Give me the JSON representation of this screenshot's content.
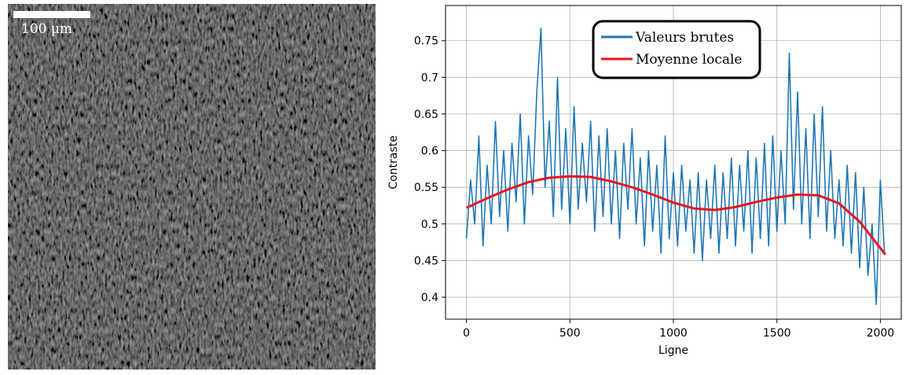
{
  "image": {
    "scale_label": "100 µm"
  },
  "chart_data": {
    "type": "line",
    "xlabel": "Ligne",
    "ylabel": "Contraste",
    "xlim": [
      -101,
      2101
    ],
    "ylim": [
      0.37,
      0.798
    ],
    "xticks": [
      0,
      500,
      1000,
      1500,
      2000
    ],
    "yticks": [
      0.4,
      0.45,
      0.5,
      0.55,
      0.6,
      0.65,
      0.7,
      0.75
    ],
    "grid": true,
    "legend": "upper center",
    "series": [
      {
        "name": "Valeurs brutes",
        "color": "#1f77b4",
        "x": [
          0,
          20,
          40,
          60,
          80,
          100,
          120,
          140,
          160,
          180,
          200,
          220,
          240,
          260,
          280,
          300,
          320,
          340,
          360,
          380,
          400,
          420,
          440,
          460,
          480,
          500,
          520,
          540,
          560,
          580,
          600,
          620,
          640,
          660,
          680,
          700,
          720,
          740,
          760,
          780,
          800,
          820,
          840,
          860,
          880,
          900,
          920,
          940,
          960,
          980,
          1000,
          1020,
          1040,
          1060,
          1080,
          1100,
          1120,
          1140,
          1160,
          1180,
          1200,
          1220,
          1240,
          1260,
          1280,
          1300,
          1320,
          1340,
          1360,
          1380,
          1400,
          1420,
          1440,
          1460,
          1480,
          1500,
          1520,
          1540,
          1560,
          1580,
          1600,
          1620,
          1640,
          1660,
          1680,
          1700,
          1720,
          1740,
          1760,
          1780,
          1800,
          1820,
          1840,
          1860,
          1880,
          1900,
          1920,
          1940,
          1960,
          1980,
          2000,
          2020
        ],
        "values": [
          0.48,
          0.56,
          0.5,
          0.62,
          0.47,
          0.58,
          0.5,
          0.64,
          0.51,
          0.6,
          0.49,
          0.61,
          0.53,
          0.65,
          0.5,
          0.62,
          0.54,
          0.68,
          0.767,
          0.55,
          0.64,
          0.51,
          0.7,
          0.52,
          0.63,
          0.5,
          0.66,
          0.52,
          0.61,
          0.53,
          0.64,
          0.49,
          0.62,
          0.51,
          0.63,
          0.5,
          0.6,
          0.48,
          0.61,
          0.52,
          0.63,
          0.5,
          0.59,
          0.47,
          0.6,
          0.49,
          0.58,
          0.46,
          0.62,
          0.48,
          0.57,
          0.47,
          0.58,
          0.49,
          0.56,
          0.46,
          0.57,
          0.45,
          0.56,
          0.48,
          0.58,
          0.46,
          0.57,
          0.48,
          0.59,
          0.47,
          0.58,
          0.49,
          0.6,
          0.46,
          0.59,
          0.48,
          0.61,
          0.47,
          0.62,
          0.49,
          0.6,
          0.5,
          0.733,
          0.52,
          0.68,
          0.5,
          0.63,
          0.48,
          0.65,
          0.51,
          0.66,
          0.49,
          0.6,
          0.48,
          0.56,
          0.47,
          0.58,
          0.46,
          0.57,
          0.44,
          0.55,
          0.43,
          0.5,
          0.39,
          0.56,
          0.46
        ]
      },
      {
        "name": "Moyenne locale",
        "color": "#e8141c",
        "x": [
          0,
          100,
          200,
          300,
          400,
          500,
          600,
          700,
          800,
          900,
          1000,
          1100,
          1200,
          1300,
          1400,
          1500,
          1600,
          1700,
          1800,
          1900,
          2000,
          2024
        ],
        "values": [
          0.522,
          0.535,
          0.547,
          0.557,
          0.563,
          0.565,
          0.564,
          0.558,
          0.55,
          0.54,
          0.529,
          0.521,
          0.519,
          0.523,
          0.53,
          0.536,
          0.54,
          0.539,
          0.528,
          0.503,
          0.467,
          0.458
        ]
      }
    ]
  }
}
